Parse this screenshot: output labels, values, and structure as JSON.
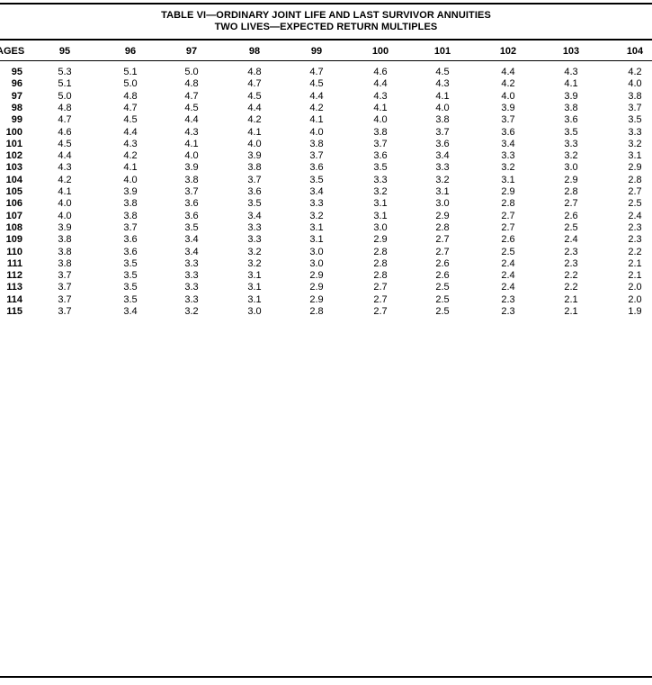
{
  "title": {
    "line1": "TABLE VI—ORDINARY JOINT LIFE AND LAST SURVIVOR ANNUITIES",
    "line2": "TWO LIVES—EXPECTED RETURN MULTIPLES"
  },
  "table": {
    "corner_label": "AGES",
    "columns": [
      "95",
      "96",
      "97",
      "98",
      "99",
      "100",
      "101",
      "102",
      "103",
      "104"
    ],
    "rows": [
      {
        "age": "95",
        "values": [
          "5.3",
          "5.1",
          "5.0",
          "4.8",
          "4.7",
          "4.6",
          "4.5",
          "4.4",
          "4.3",
          "4.2"
        ]
      },
      {
        "age": "96",
        "values": [
          "5.1",
          "5.0",
          "4.8",
          "4.7",
          "4.5",
          "4.4",
          "4.3",
          "4.2",
          "4.1",
          "4.0"
        ]
      },
      {
        "age": "97",
        "values": [
          "5.0",
          "4.8",
          "4.7",
          "4.5",
          "4.4",
          "4.3",
          "4.1",
          "4.0",
          "3.9",
          "3.8"
        ]
      },
      {
        "age": "98",
        "values": [
          "4.8",
          "4.7",
          "4.5",
          "4.4",
          "4.2",
          "4.1",
          "4.0",
          "3.9",
          "3.8",
          "3.7"
        ]
      },
      {
        "age": "99",
        "values": [
          "4.7",
          "4.5",
          "4.4",
          "4.2",
          "4.1",
          "4.0",
          "3.8",
          "3.7",
          "3.6",
          "3.5"
        ]
      },
      {
        "age": "100",
        "values": [
          "4.6",
          "4.4",
          "4.3",
          "4.1",
          "4.0",
          "3.8",
          "3.7",
          "3.6",
          "3.5",
          "3.3"
        ]
      },
      {
        "age": "101",
        "values": [
          "4.5",
          "4.3",
          "4.1",
          "4.0",
          "3.8",
          "3.7",
          "3.6",
          "3.4",
          "3.3",
          "3.2"
        ]
      },
      {
        "age": "102",
        "values": [
          "4.4",
          "4.2",
          "4.0",
          "3.9",
          "3.7",
          "3.6",
          "3.4",
          "3.3",
          "3.2",
          "3.1"
        ]
      },
      {
        "age": "103",
        "values": [
          "4.3",
          "4.1",
          "3.9",
          "3.8",
          "3.6",
          "3.5",
          "3.3",
          "3.2",
          "3.0",
          "2.9"
        ]
      },
      {
        "age": "104",
        "values": [
          "4.2",
          "4.0",
          "3.8",
          "3.7",
          "3.5",
          "3.3",
          "3.2",
          "3.1",
          "2.9",
          "2.8"
        ]
      },
      {
        "age": "105",
        "values": [
          "4.1",
          "3.9",
          "3.7",
          "3.6",
          "3.4",
          "3.2",
          "3.1",
          "2.9",
          "2.8",
          "2.7"
        ]
      },
      {
        "age": "106",
        "values": [
          "4.0",
          "3.8",
          "3.6",
          "3.5",
          "3.3",
          "3.1",
          "3.0",
          "2.8",
          "2.7",
          "2.5"
        ]
      },
      {
        "age": "107",
        "values": [
          "4.0",
          "3.8",
          "3.6",
          "3.4",
          "3.2",
          "3.1",
          "2.9",
          "2.7",
          "2.6",
          "2.4"
        ]
      },
      {
        "age": "108",
        "values": [
          "3.9",
          "3.7",
          "3.5",
          "3.3",
          "3.1",
          "3.0",
          "2.8",
          "2.7",
          "2.5",
          "2.3"
        ]
      },
      {
        "age": "109",
        "values": [
          "3.8",
          "3.6",
          "3.4",
          "3.3",
          "3.1",
          "2.9",
          "2.7",
          "2.6",
          "2.4",
          "2.3"
        ]
      },
      {
        "age": "110",
        "values": [
          "3.8",
          "3.6",
          "3.4",
          "3.2",
          "3.0",
          "2.8",
          "2.7",
          "2.5",
          "2.3",
          "2.2"
        ]
      },
      {
        "age": "111",
        "values": [
          "3.8",
          "3.5",
          "3.3",
          "3.2",
          "3.0",
          "2.8",
          "2.6",
          "2.4",
          "2.3",
          "2.1"
        ]
      },
      {
        "age": "112",
        "values": [
          "3.7",
          "3.5",
          "3.3",
          "3.1",
          "2.9",
          "2.8",
          "2.6",
          "2.4",
          "2.2",
          "2.1"
        ]
      },
      {
        "age": "113",
        "values": [
          "3.7",
          "3.5",
          "3.3",
          "3.1",
          "2.9",
          "2.7",
          "2.5",
          "2.4",
          "2.2",
          "2.0"
        ]
      },
      {
        "age": "114",
        "values": [
          "3.7",
          "3.5",
          "3.3",
          "3.1",
          "2.9",
          "2.7",
          "2.5",
          "2.3",
          "2.1",
          "2.0"
        ]
      },
      {
        "age": "115",
        "values": [
          "3.7",
          "3.4",
          "3.2",
          "3.0",
          "2.8",
          "2.7",
          "2.5",
          "2.3",
          "2.1",
          "1.9"
        ]
      }
    ]
  }
}
